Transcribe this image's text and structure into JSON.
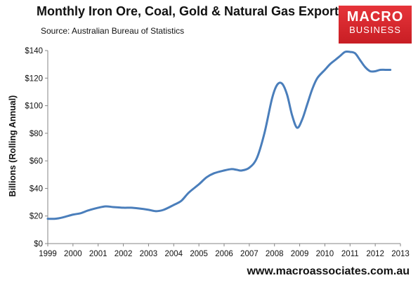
{
  "header": {
    "title": "Monthly Iron Ore, Coal, Gold & Natural Gas Exports",
    "source": "Source:  Australian Bureau of Statistics"
  },
  "logo": {
    "line1": "MACRO",
    "line2": "BUSINESS"
  },
  "footer": {
    "website": "www.macroassociates.com.au"
  },
  "colors": {
    "line": "#4a7ebb",
    "axis": "#868686",
    "logo_red": "#d4262c"
  },
  "chart_data": {
    "type": "line",
    "title": "Monthly Iron Ore, Coal, Gold & Natural Gas Exports",
    "ylabel": "Billions (Rolling Annual)",
    "xlabel": "",
    "xlim": [
      1999,
      2013
    ],
    "ylim": [
      0,
      140
    ],
    "grid": false,
    "legend": "none",
    "x_ticks": [
      "1999",
      "2000",
      "2001",
      "2002",
      "2003",
      "2004",
      "2005",
      "2006",
      "2007",
      "2008",
      "2009",
      "2010",
      "2011",
      "2012",
      "2013"
    ],
    "y_ticks": [
      "$0",
      "$20",
      "$40",
      "$60",
      "$80",
      "$100",
      "$120",
      "$140"
    ],
    "series": [
      {
        "x": [
          1999.0,
          1999.3,
          1999.6,
          2000.0,
          2000.3,
          2000.6,
          2001.0,
          2001.3,
          2001.6,
          2002.0,
          2002.3,
          2002.6,
          2003.0,
          2003.3,
          2003.6,
          2004.0,
          2004.3,
          2004.6,
          2005.0,
          2005.3,
          2005.6,
          2006.0,
          2006.3,
          2006.5,
          2006.7,
          2007.0,
          2007.3,
          2007.6,
          2007.9,
          2008.1,
          2008.3,
          2008.5,
          2008.7,
          2008.9,
          2009.1,
          2009.3,
          2009.5,
          2009.7,
          2010.0,
          2010.2,
          2010.4,
          2010.6,
          2010.8,
          2011.0,
          2011.2,
          2011.4,
          2011.6,
          2011.8,
          2012.0,
          2012.2,
          2012.4,
          2012.6
        ],
        "values": [
          18,
          18,
          19,
          21,
          22,
          24,
          26,
          27,
          26.5,
          26,
          26,
          25.5,
          24.5,
          23.5,
          24.5,
          28,
          31,
          37,
          43,
          48,
          51,
          53,
          54,
          53.5,
          53,
          55,
          62,
          80,
          105,
          115,
          116,
          108,
          93,
          84,
          90,
          101,
          112,
          120,
          126,
          130,
          133,
          136,
          139,
          139,
          138,
          133,
          128,
          125,
          125,
          126,
          126,
          126
        ]
      }
    ]
  }
}
